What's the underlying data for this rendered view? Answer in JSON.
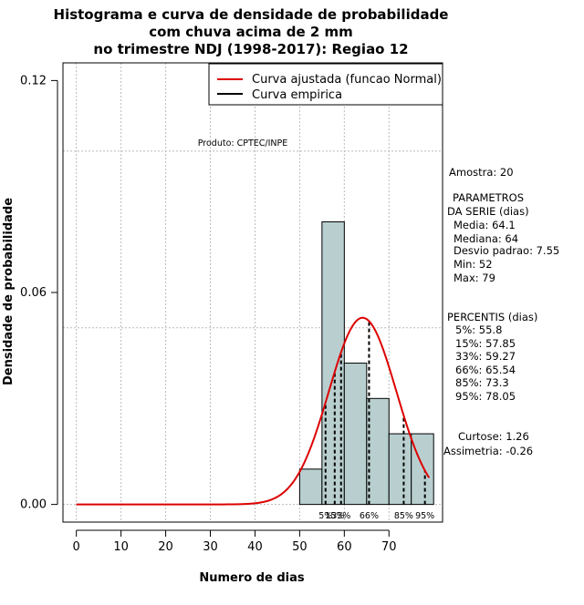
{
  "chart_data": {
    "type": "histogram",
    "title": [
      "Histograma e curva de densidade de probabilidade",
      "com chuva acima de 2 mm",
      "no trimestre NDJ (1998-2017): Regiao 12"
    ],
    "xlabel": "Numero de dias",
    "ylabel": "Densidade de probabilidade",
    "xlim": [
      -3,
      82
    ],
    "ylim": [
      -0.005,
      0.125
    ],
    "x_ticks": [
      0,
      10,
      20,
      30,
      40,
      50,
      60,
      70
    ],
    "y_ticks": [
      0.0,
      0.06,
      0.12
    ],
    "y_tick_labels": [
      "0.00",
      "0.06",
      "0.12"
    ],
    "grid_x": [
      0,
      10,
      20,
      30,
      40,
      50,
      60,
      70
    ],
    "grid_y": [
      0.0,
      0.05,
      0.1
    ],
    "bins": [
      {
        "start": 50,
        "end": 55,
        "density": 0.01
      },
      {
        "start": 55,
        "end": 60,
        "density": 0.08
      },
      {
        "start": 60,
        "end": 65,
        "density": 0.04
      },
      {
        "start": 65,
        "end": 70,
        "density": 0.03
      },
      {
        "start": 70,
        "end": 75,
        "density": 0.02
      },
      {
        "start": 75,
        "end": 80,
        "density": 0.02
      }
    ],
    "bar_color": "#b9cfcf",
    "normal_fit": {
      "mean": 64.1,
      "sd": 7.55,
      "x_range": [
        0,
        79
      ],
      "color": "#dd0000"
    },
    "percentiles": [
      {
        "label": "5%",
        "value": 55.8
      },
      {
        "label": "15%",
        "value": 57.85
      },
      {
        "label": "33%",
        "value": 59.27
      },
      {
        "label": "66%",
        "value": 65.54
      },
      {
        "label": "85%",
        "value": 73.3
      },
      {
        "label": "95%",
        "value": 78.05
      }
    ],
    "legend": [
      {
        "label": "Curva ajustada (funcao Normal)",
        "color": "#dd0000"
      },
      {
        "label": "Curva empirica",
        "color": "#000000"
      }
    ],
    "legend_position": "top-right",
    "annotation": "Produto: CPTEC/INPE",
    "stats_text": [
      "Amostra: 20",
      "PARAMETROS",
      "DA SERIE (dias)",
      "Media: 64.1",
      "Mediana: 64",
      "Desvio padrao: 7.55",
      "Min: 52",
      "Max: 79",
      "PERCENTIS (dias)",
      "5%: 55.8",
      "15%: 57.85",
      "33%: 59.27",
      "66%: 65.54",
      "85%: 73.3",
      "95%: 78.05",
      "Curtose: 1.26",
      "Assimetria: -0.26"
    ]
  }
}
